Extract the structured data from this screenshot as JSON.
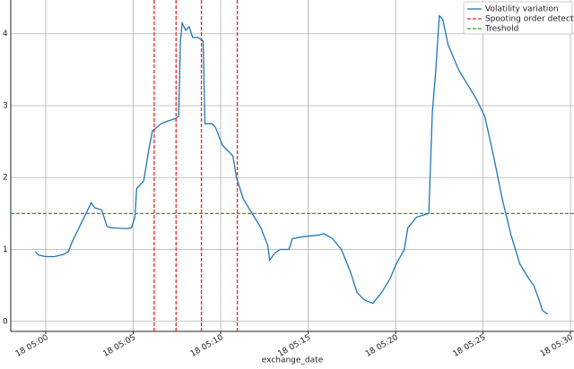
{
  "chart_data": {
    "type": "line",
    "xlabel": "exchange_date",
    "xlim": [
      -2,
      30.2
    ],
    "ylim": [
      -0.14,
      4.47
    ],
    "xticks": [
      {
        "value": 0,
        "label": "18 05:00"
      },
      {
        "value": 5,
        "label": "18 05:05"
      },
      {
        "value": 10,
        "label": "18 05:10"
      },
      {
        "value": 15,
        "label": "18 05:15"
      },
      {
        "value": 20,
        "label": "18 05:20"
      },
      {
        "value": 25,
        "label": "18 05:25"
      },
      {
        "value": 30,
        "label": "18 05:30"
      }
    ],
    "yticks": [
      0,
      1,
      2,
      3,
      4
    ],
    "grid": true,
    "legend": "upper right",
    "series": [
      {
        "name": "Volatility variation",
        "color": "#1f77b4",
        "style": "solid",
        "x": [
          -0.6,
          -0.4,
          0,
          0.5,
          1.0,
          1.3,
          1.5,
          2.0,
          2.6,
          2.8,
          3.2,
          3.5,
          3.8,
          4.6,
          4.9,
          5.1,
          5.2,
          5.6,
          5.9,
          6.1,
          6.6,
          6.9,
          7.4,
          7.6,
          7.7,
          7.8,
          8.0,
          8.2,
          8.4,
          8.7,
          9.0,
          9.1,
          9.5,
          9.7,
          10.1,
          10.7,
          10.9,
          11.3,
          11.8,
          12.3,
          12.7,
          12.8,
          13.1,
          13.4,
          13.9,
          14.1,
          14.8,
          15.6,
          15.9,
          16.4,
          16.9,
          17.4,
          17.8,
          18.2,
          18.7,
          19.2,
          19.7,
          20.0,
          20.5,
          20.7,
          21.2,
          21.9,
          22.1,
          22.3,
          22.5,
          22.7,
          23.0,
          23.6,
          24.1,
          24.6,
          25.1,
          25.6,
          26.1,
          26.6,
          27.1,
          27.6,
          27.9,
          28.2,
          28.4,
          28.7
        ],
        "values": [
          0.97,
          0.92,
          0.9,
          0.9,
          0.93,
          0.97,
          1.1,
          1.35,
          1.65,
          1.58,
          1.55,
          1.32,
          1.3,
          1.29,
          1.3,
          1.45,
          1.85,
          1.95,
          2.4,
          2.65,
          2.75,
          2.78,
          2.82,
          2.85,
          3.9,
          4.15,
          4.05,
          4.1,
          3.95,
          3.95,
          3.9,
          2.75,
          2.75,
          2.7,
          2.45,
          2.3,
          2.0,
          1.7,
          1.5,
          1.3,
          1.05,
          0.85,
          0.95,
          1.0,
          1.0,
          1.15,
          1.18,
          1.2,
          1.22,
          1.15,
          1.0,
          0.7,
          0.4,
          0.3,
          0.25,
          0.4,
          0.6,
          0.78,
          1.0,
          1.3,
          1.45,
          1.5,
          2.9,
          3.5,
          4.25,
          4.2,
          3.85,
          3.5,
          3.3,
          3.1,
          2.85,
          2.3,
          1.7,
          1.2,
          0.8,
          0.6,
          0.5,
          0.3,
          0.15,
          0.1
        ]
      },
      {
        "name": "Spooting order detected",
        "color": "#e8262a",
        "style": "dashed",
        "vlines": [
          6.2,
          7.45,
          8.9,
          10.95
        ]
      },
      {
        "name": "Treshold",
        "color": "#2ca02c",
        "style": "dashed",
        "hline": 1.5
      }
    ]
  }
}
